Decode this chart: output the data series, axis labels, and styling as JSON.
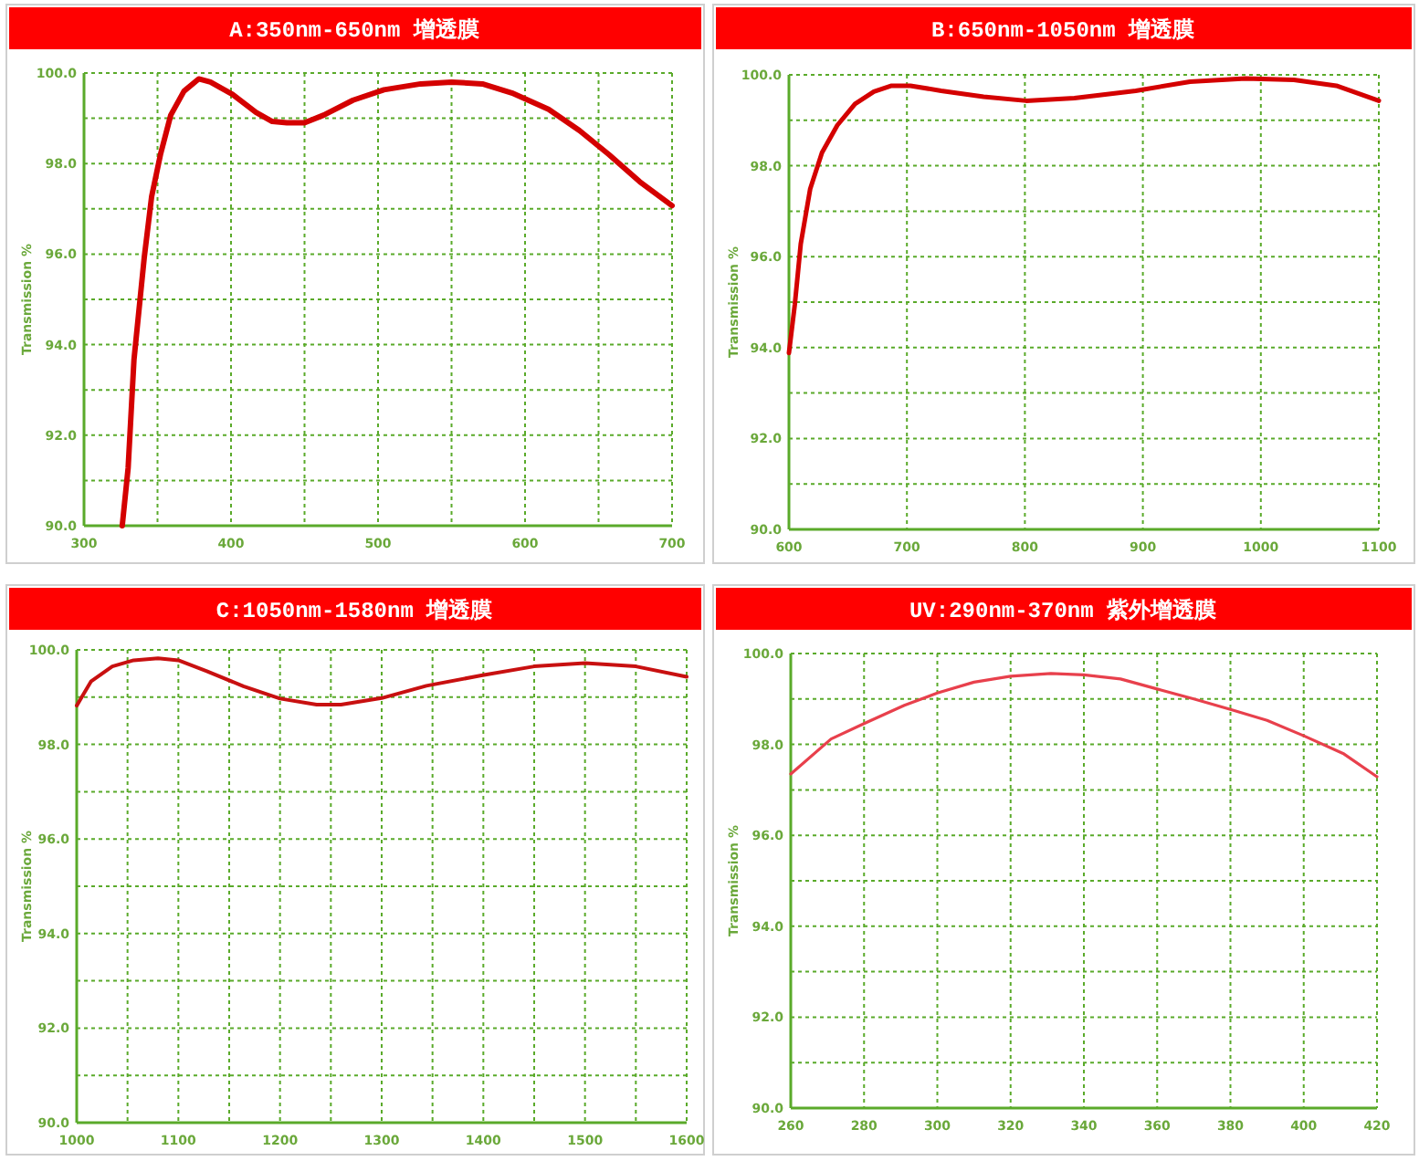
{
  "chart_data": [
    {
      "type": "line",
      "title": "A:350nm-650nm 增透膜",
      "ylabel": "Transmission %",
      "color": "#d40000",
      "grid": true,
      "x": [
        326,
        330,
        334,
        341,
        346,
        352,
        359,
        368,
        378,
        386,
        401,
        417,
        428,
        438,
        450,
        463,
        483,
        504,
        529,
        550,
        571,
        591,
        616,
        637,
        657,
        678,
        700
      ],
      "values": [
        90.0,
        91.27,
        93.67,
        95.93,
        97.27,
        98.2,
        99.07,
        99.6,
        99.87,
        99.8,
        99.53,
        99.13,
        98.93,
        98.9,
        98.9,
        99.07,
        99.4,
        99.63,
        99.76,
        99.8,
        99.76,
        99.56,
        99.2,
        98.73,
        98.2,
        97.6,
        97.07
      ],
      "xlim": [
        300,
        700
      ],
      "ylim": [
        90,
        100
      ],
      "xticks": [
        300,
        {
          "value": 350,
          "label": null
        },
        400,
        {
          "value": 450,
          "label": null
        },
        500,
        {
          "value": 550,
          "label": null
        },
        600,
        {
          "value": 650,
          "label": null
        },
        700
      ],
      "yticks": [
        {
          "value": 90,
          "label": "90.0"
        },
        {
          "value": 91,
          "label": null
        },
        {
          "value": 92,
          "label": "92.0"
        },
        {
          "value": 93,
          "label": null
        },
        {
          "value": 94,
          "label": "94.0"
        },
        {
          "value": 95,
          "label": null
        },
        {
          "value": 96,
          "label": "96.0"
        },
        {
          "value": 97,
          "label": null
        },
        {
          "value": 98,
          "label": "98.0"
        },
        {
          "value": 99,
          "label": null
        },
        {
          "value": 100,
          "label": "100.0"
        }
      ]
    },
    {
      "type": "line",
      "title": "B:650nm-1050nm 增透膜",
      "ylabel": "Transmission %",
      "color": "#d40000",
      "grid": true,
      "x": [
        600,
        605,
        610,
        618,
        628,
        641,
        656,
        672,
        687,
        703,
        729,
        765,
        801,
        842,
        894,
        940,
        987,
        1028,
        1064,
        1100
      ],
      "values": [
        93.88,
        94.95,
        96.28,
        97.49,
        98.29,
        98.89,
        99.36,
        99.63,
        99.76,
        99.76,
        99.65,
        99.52,
        99.43,
        99.49,
        99.65,
        99.85,
        99.92,
        99.89,
        99.76,
        99.43
      ],
      "xlim": [
        600,
        1100
      ],
      "ylim": [
        90,
        100
      ],
      "xticks": [
        600,
        700,
        800,
        900,
        1000,
        1100
      ],
      "yticks": [
        {
          "value": 90,
          "label": "90.0"
        },
        {
          "value": 91,
          "label": null
        },
        {
          "value": 92,
          "label": "92.0"
        },
        {
          "value": 93,
          "label": null
        },
        {
          "value": 94,
          "label": "94.0"
        },
        {
          "value": 95,
          "label": null
        },
        {
          "value": 96,
          "label": "96.0"
        },
        {
          "value": 97,
          "label": null
        },
        {
          "value": 98,
          "label": "98.0"
        },
        {
          "value": 99,
          "label": null
        },
        {
          "value": 100,
          "label": "100.0"
        }
      ]
    },
    {
      "type": "line",
      "title": "C:1050nm-1580nm 增透膜",
      "ylabel": "Transmission %",
      "color": "#c81010",
      "grid": true,
      "x": [
        1000,
        1014,
        1035,
        1056,
        1080,
        1100,
        1128,
        1164,
        1200,
        1236,
        1260,
        1300,
        1344,
        1398,
        1450,
        1500,
        1550,
        1600
      ],
      "values": [
        98.82,
        99.33,
        99.65,
        99.78,
        99.82,
        99.78,
        99.55,
        99.23,
        98.97,
        98.84,
        98.84,
        98.98,
        99.24,
        99.46,
        99.65,
        99.72,
        99.65,
        99.43
      ],
      "xlim": [
        1000,
        1600
      ],
      "ylim": [
        90,
        100
      ],
      "xticks": [
        1000,
        {
          "value": 1050,
          "label": null
        },
        1100,
        {
          "value": 1150,
          "label": null
        },
        1200,
        {
          "value": 1250,
          "label": null
        },
        1300,
        {
          "value": 1350,
          "label": null
        },
        1400,
        {
          "value": 1450,
          "label": null
        },
        1500,
        {
          "value": 1550,
          "label": null
        },
        1600
      ],
      "yticks": [
        {
          "value": 90,
          "label": "90.0"
        },
        {
          "value": 91,
          "label": null
        },
        {
          "value": 92,
          "label": "92.0"
        },
        {
          "value": 93,
          "label": null
        },
        {
          "value": 94,
          "label": "94.0"
        },
        {
          "value": 95,
          "label": null
        },
        {
          "value": 96,
          "label": "96.0"
        },
        {
          "value": 97,
          "label": null
        },
        {
          "value": 98,
          "label": "98.0"
        },
        {
          "value": 99,
          "label": null
        },
        {
          "value": 100,
          "label": "100.0"
        }
      ]
    },
    {
      "type": "line",
      "title": "UV:290nm-370nm 紫外增透膜",
      "ylabel": "Transmission %",
      "color": "#e8404c",
      "grid": true,
      "x": [
        260,
        271,
        280,
        291,
        300,
        310,
        320,
        331,
        340,
        350,
        360,
        370,
        380,
        390,
        400,
        411,
        420
      ],
      "values": [
        97.35,
        98.12,
        98.46,
        98.86,
        99.13,
        99.37,
        99.5,
        99.56,
        99.53,
        99.44,
        99.22,
        99.0,
        98.77,
        98.53,
        98.19,
        97.79,
        97.29
      ],
      "xlim": [
        260,
        420
      ],
      "ylim": [
        90,
        100
      ],
      "xticks": [
        260,
        280,
        300,
        320,
        340,
        360,
        380,
        400,
        420
      ],
      "yticks": [
        {
          "value": 90,
          "label": "90.0"
        },
        {
          "value": 91,
          "label": null
        },
        {
          "value": 92,
          "label": "92.0"
        },
        {
          "value": 93,
          "label": null
        },
        {
          "value": 94,
          "label": "94.0"
        },
        {
          "value": 95,
          "label": null
        },
        {
          "value": 96,
          "label": "96.0"
        },
        {
          "value": 97,
          "label": null
        },
        {
          "value": 98,
          "label": "98.0"
        },
        {
          "value": 99,
          "label": null
        },
        {
          "value": 100,
          "label": "100.0"
        }
      ]
    }
  ]
}
